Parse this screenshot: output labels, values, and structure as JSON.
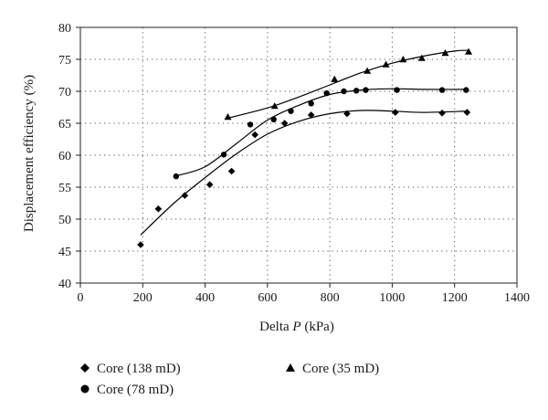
{
  "chart_data": {
    "type": "scatter",
    "xlabel": "Delta P (kPa)",
    "xlabel_main": "Delta ",
    "xlabel_var": "P",
    "xlabel_unit": " (kPa)",
    "ylabel": "Displacement efficiency (%)",
    "xlim": [
      0,
      1400
    ],
    "ylim": [
      40,
      80
    ],
    "xticks": [
      "0",
      "200",
      "400",
      "600",
      "800",
      "1000",
      "1200",
      "1400"
    ],
    "yticks": [
      "40",
      "45",
      "50",
      "55",
      "60",
      "65",
      "70",
      "75",
      "80"
    ],
    "grid": "dotted",
    "legend_placement": "bottom",
    "series": [
      {
        "name": "Core (138 mD)",
        "marker": "diamond",
        "points": [
          [
            193,
            46.0
          ],
          [
            250,
            51.6
          ],
          [
            335,
            53.7
          ],
          [
            415,
            55.4
          ],
          [
            485,
            57.5
          ],
          [
            560,
            63.2
          ],
          [
            655,
            65.0
          ],
          [
            740,
            66.3
          ],
          [
            855,
            66.5
          ],
          [
            1010,
            66.7
          ],
          [
            1160,
            66.6
          ],
          [
            1240,
            66.7
          ]
        ],
        "trend": [
          [
            193,
            47.5
          ],
          [
            300,
            52.5
          ],
          [
            400,
            56.5
          ],
          [
            500,
            60.2
          ],
          [
            600,
            63.3
          ],
          [
            700,
            65.3
          ],
          [
            800,
            66.5
          ],
          [
            900,
            67.0
          ],
          [
            1000,
            66.9
          ],
          [
            1100,
            66.7
          ],
          [
            1240,
            66.9
          ]
        ]
      },
      {
        "name": "Core (78 mD)",
        "marker": "circle",
        "points": [
          [
            307,
            56.7
          ],
          [
            460,
            60.1
          ],
          [
            545,
            64.8
          ],
          [
            620,
            65.6
          ],
          [
            675,
            66.9
          ],
          [
            740,
            68.1
          ],
          [
            790,
            69.7
          ],
          [
            845,
            70.0
          ],
          [
            885,
            70.1
          ],
          [
            915,
            70.2
          ],
          [
            1015,
            70.2
          ],
          [
            1160,
            70.2
          ],
          [
            1237,
            70.2
          ]
        ],
        "trend": [
          [
            310,
            56.8
          ],
          [
            400,
            58.2
          ],
          [
            500,
            61.8
          ],
          [
            600,
            65.5
          ],
          [
            700,
            67.8
          ],
          [
            800,
            69.5
          ],
          [
            900,
            70.2
          ],
          [
            1000,
            70.4
          ],
          [
            1100,
            70.3
          ],
          [
            1237,
            70.3
          ]
        ]
      },
      {
        "name": "Core (35 mD)",
        "marker": "triangle",
        "points": [
          [
            473,
            66.0
          ],
          [
            623,
            67.7
          ],
          [
            815,
            71.9
          ],
          [
            920,
            73.2
          ],
          [
            980,
            74.2
          ],
          [
            1035,
            75.0
          ],
          [
            1095,
            75.2
          ],
          [
            1170,
            76.0
          ],
          [
            1245,
            76.2
          ]
        ],
        "trend": [
          [
            473,
            65.8
          ],
          [
            600,
            67.4
          ],
          [
            700,
            69.1
          ],
          [
            800,
            71.0
          ],
          [
            900,
            72.9
          ],
          [
            1000,
            74.4
          ],
          [
            1100,
            75.5
          ],
          [
            1200,
            76.3
          ],
          [
            1245,
            76.4
          ]
        ]
      }
    ]
  }
}
